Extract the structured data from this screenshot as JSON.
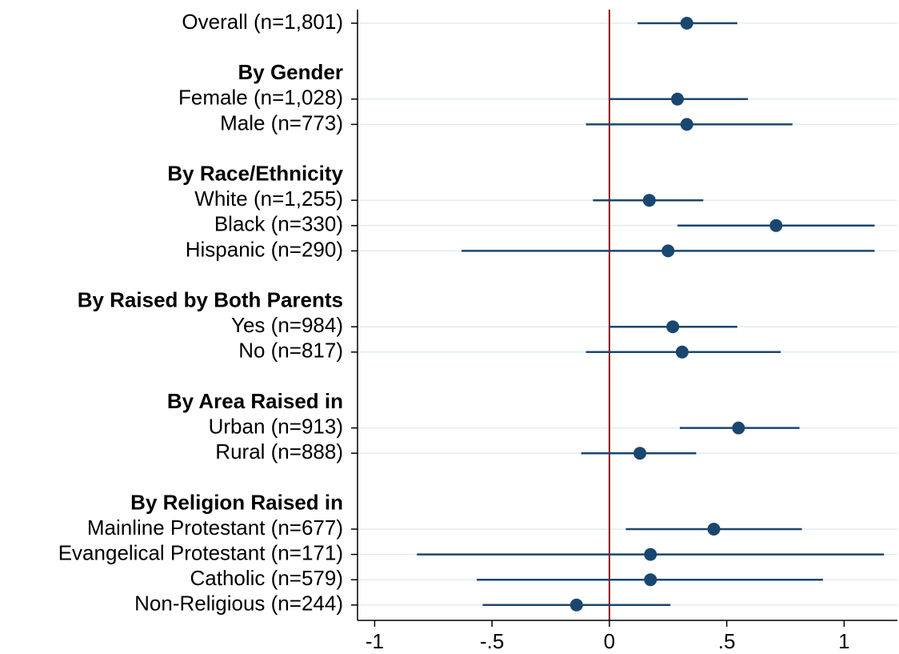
{
  "chart_data": {
    "type": "coefplot",
    "rows": [
      {
        "label": "Overall (n=1,801)",
        "value": 0.33,
        "ci_low": 0.12,
        "ci_high": 0.545
      },
      {
        "label": null
      },
      {
        "label": "By Gender",
        "header": true
      },
      {
        "label": "Female (n=1,028)",
        "value": 0.29,
        "ci_low": 0.0,
        "ci_high": 0.59
      },
      {
        "label": "Male (n=773)",
        "value": 0.33,
        "ci_low": -0.1,
        "ci_high": 0.78
      },
      {
        "label": null
      },
      {
        "label": "By Race/Ethnicity",
        "header": true
      },
      {
        "label": "White (n=1,255)",
        "value": 0.17,
        "ci_low": -0.07,
        "ci_high": 0.4
      },
      {
        "label": "Black (n=330)",
        "value": 0.71,
        "ci_low": 0.29,
        "ci_high": 1.13
      },
      {
        "label": "Hispanic (n=290)",
        "value": 0.25,
        "ci_low": -0.63,
        "ci_high": 1.13
      },
      {
        "label": null
      },
      {
        "label": "By Raised by Both Parents",
        "header": true
      },
      {
        "label": "Yes (n=984)",
        "value": 0.27,
        "ci_low": 0.0,
        "ci_high": 0.545
      },
      {
        "label": "No (n=817)",
        "value": 0.31,
        "ci_low": -0.1,
        "ci_high": 0.73
      },
      {
        "label": null
      },
      {
        "label": "By Area Raised in",
        "header": true
      },
      {
        "label": "Urban (n=913)",
        "value": 0.55,
        "ci_low": 0.3,
        "ci_high": 0.81
      },
      {
        "label": "Rural (n=888)",
        "value": 0.13,
        "ci_low": -0.12,
        "ci_high": 0.37
      },
      {
        "label": null
      },
      {
        "label": "By Religion Raised in",
        "header": true
      },
      {
        "label": "Mainline Protestant (n=677)",
        "value": 0.445,
        "ci_low": 0.07,
        "ci_high": 0.82
      },
      {
        "label": "Evangelical Protestant (n=171)",
        "value": 0.175,
        "ci_low": -0.82,
        "ci_high": 1.17
      },
      {
        "label": "Catholic (n=579)",
        "value": 0.175,
        "ci_low": -0.565,
        "ci_high": 0.91
      },
      {
        "label": "Non-Religious (n=244)",
        "value": -0.14,
        "ci_low": -0.54,
        "ci_high": 0.26
      }
    ],
    "xlim": [
      -1.073,
      1.227
    ],
    "xticks": [
      -1,
      {
        "value": -0.5,
        "label": "-.5"
      },
      0,
      {
        "value": 0.5,
        "label": ".5"
      },
      1
    ],
    "reference_line": 0,
    "color": "#1a476f",
    "reference_color": "#8b1a1a",
    "grid": true
  }
}
